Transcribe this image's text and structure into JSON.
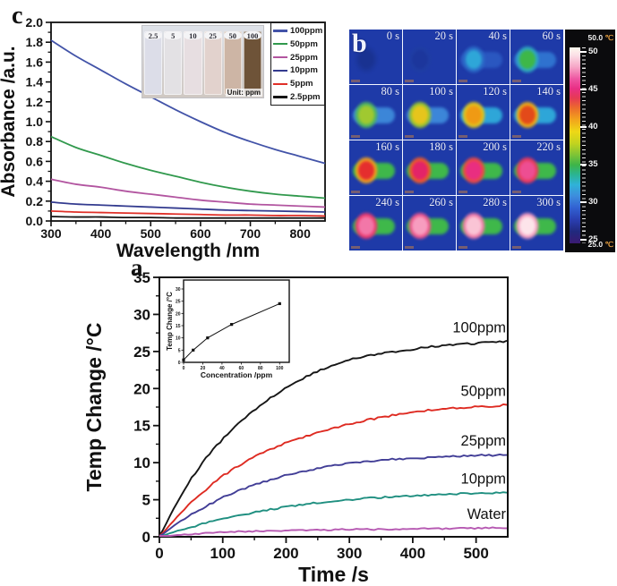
{
  "panel_labels": {
    "a": "a",
    "b": "b",
    "c": "c"
  },
  "chart_data": [
    {
      "id": "c",
      "type": "line",
      "xlabel": "Wavelength /nm",
      "ylabel": "Absorbance /a.u.",
      "xlim": [
        300,
        850
      ],
      "ylim": [
        0.0,
        2.0
      ],
      "xticks": [
        300,
        400,
        500,
        600,
        700,
        800
      ],
      "xminor_step": 50,
      "yticks": [
        0.0,
        0.2,
        0.4,
        0.6,
        0.8,
        1.0,
        1.2,
        1.4,
        1.6,
        1.8,
        2.0
      ],
      "yminor_step": 0.1,
      "grid": false,
      "wavelengths": [
        300,
        350,
        400,
        450,
        500,
        550,
        600,
        650,
        700,
        750,
        800,
        850
      ],
      "series": [
        {
          "name": "100ppm",
          "color": "#4253a8",
          "values": [
            1.82,
            1.66,
            1.52,
            1.38,
            1.25,
            1.12,
            1.0,
            0.89,
            0.8,
            0.72,
            0.65,
            0.58
          ]
        },
        {
          "name": "50ppm",
          "color": "#31994d",
          "values": [
            0.85,
            0.74,
            0.66,
            0.58,
            0.51,
            0.45,
            0.39,
            0.34,
            0.3,
            0.27,
            0.25,
            0.23
          ]
        },
        {
          "name": "25ppm",
          "color": "#b255a0",
          "values": [
            0.42,
            0.37,
            0.34,
            0.3,
            0.27,
            0.24,
            0.21,
            0.19,
            0.17,
            0.16,
            0.15,
            0.14
          ]
        },
        {
          "name": "10ppm",
          "color": "#333b8f",
          "values": [
            0.19,
            0.17,
            0.16,
            0.15,
            0.14,
            0.13,
            0.12,
            0.11,
            0.105,
            0.1,
            0.095,
            0.09
          ]
        },
        {
          "name": "5ppm",
          "color": "#e03028",
          "values": [
            0.1,
            0.09,
            0.085,
            0.08,
            0.075,
            0.07,
            0.065,
            0.06,
            0.06,
            0.055,
            0.055,
            0.05
          ]
        },
        {
          "name": "2.5ppm",
          "color": "#141414",
          "values": [
            0.045,
            0.04,
            0.04,
            0.035,
            0.035,
            0.03,
            0.03,
            0.03,
            0.03,
            0.03,
            0.03,
            0.03
          ]
        }
      ],
      "legend": {
        "position": "top-right",
        "entries": [
          "100ppm",
          "50ppm",
          "25ppm",
          "10ppm",
          "5ppm",
          "2.5ppm"
        ]
      },
      "inset_photo": {
        "labels": [
          "2.5",
          "5",
          "10",
          "25",
          "50",
          "100"
        ],
        "unit_label": "Unit: ppm",
        "cuvette_colors": [
          "#dcdde8",
          "#e3e1e4",
          "#e7dee1",
          "#e2d2cd",
          "#cdb5a5",
          "#6e5338"
        ]
      }
    },
    {
      "id": "b",
      "type": "heatmap",
      "background": "#1e3aa8",
      "tiles": [
        {
          "t": "0 s",
          "blob": "#162d80",
          "ring": "#1a3494",
          "cap": null,
          "op": 0.55
        },
        {
          "t": "20 s",
          "blob": "#1b3391",
          "ring": "#20409f",
          "cap": null,
          "op": 0.5
        },
        {
          "t": "40 s",
          "blob": "#2ea6d8",
          "ring": "#2b6cc8",
          "cap": "#2a57c0",
          "op": 1
        },
        {
          "t": "60 s",
          "blob": "#3eb748",
          "ring": "#2fa8c0",
          "cap": "#2f72cf",
          "op": 1
        },
        {
          "t": "80 s",
          "blob": "#a0c930",
          "ring": "#52b75e",
          "cap": "#3c86d8",
          "op": 1
        },
        {
          "t": "100 s",
          "blob": "#e6c51c",
          "ring": "#9cc42e",
          "cap": "#3c86d8",
          "op": 1
        },
        {
          "t": "120 s",
          "blob": "#ef9a14",
          "ring": "#e0c41c",
          "cap": "#2ea6d8",
          "op": 1
        },
        {
          "t": "140 s",
          "blob": "#e34a1a",
          "ring": "#efae16",
          "cap": "#2ea6d8",
          "op": 1
        },
        {
          "t": "160 s",
          "blob": "#e52e2e",
          "ring": "#efa01e",
          "cap": "#3fb84a",
          "op": 1
        },
        {
          "t": "180 s",
          "blob": "#e32468",
          "ring": "#ee5a28",
          "cap": "#3fb84a",
          "op": 1
        },
        {
          "t": "200 s",
          "blob": "#e92e80",
          "ring": "#ec4a42",
          "cap": "#3fb84a",
          "op": 1
        },
        {
          "t": "220 s",
          "blob": "#ed4e92",
          "ring": "#e93a5c",
          "cap": "#3fb84a",
          "op": 1
        },
        {
          "t": "240 s",
          "blob": "#f277a8",
          "ring": "#ec3a70",
          "cap": "#3fb84a",
          "op": 1
        },
        {
          "t": "260 s",
          "blob": "#f79dbf",
          "ring": "#ef568e",
          "cap": "#3fb84a",
          "op": 1
        },
        {
          "t": "280 s",
          "blob": "#fac4d5",
          "ring": "#f27ca8",
          "cap": "#3fb84a",
          "op": 1
        },
        {
          "t": "300 s",
          "blob": "#fde4ea",
          "ring": "#f59fc2",
          "cap": "#3fb84a",
          "op": 1
        }
      ],
      "colorbar": {
        "max": {
          "value": "50.0",
          "unit": "℃"
        },
        "min": {
          "value": "25.0",
          "unit": "℃"
        },
        "ticks": [
          50,
          45,
          40,
          35,
          30,
          25
        ],
        "range": [
          25,
          50
        ],
        "gradient": [
          [
            0,
            "#fdf9ef"
          ],
          [
            4,
            "#fbdfe6"
          ],
          [
            10,
            "#f6a6c6"
          ],
          [
            16,
            "#ee56a2"
          ],
          [
            21,
            "#e82f85"
          ],
          [
            26,
            "#e63b52"
          ],
          [
            31,
            "#ec6c2c"
          ],
          [
            37,
            "#f2a51c"
          ],
          [
            43,
            "#eed816"
          ],
          [
            49,
            "#c2d31f"
          ],
          [
            55,
            "#7cc337"
          ],
          [
            60,
            "#3db449"
          ],
          [
            65,
            "#2ab493"
          ],
          [
            70,
            "#2fb2d8"
          ],
          [
            76,
            "#3d8cdd"
          ],
          [
            82,
            "#3160d1"
          ],
          [
            88,
            "#2a3eb0"
          ],
          [
            94,
            "#21297e"
          ],
          [
            100,
            "#3b1a72"
          ]
        ]
      }
    },
    {
      "id": "a",
      "type": "line",
      "xlabel": "Time /s",
      "ylabel": "Temp Change /°C",
      "xlim": [
        0,
        550
      ],
      "ylim": [
        0,
        35
      ],
      "xticks": [
        0,
        100,
        200,
        300,
        400,
        500
      ],
      "xminor_step": 50,
      "yticks": [
        0,
        5,
        10,
        15,
        20,
        25,
        30,
        35
      ],
      "yminor_step": 2.5,
      "grid": false,
      "t": [
        0,
        25,
        50,
        75,
        100,
        125,
        150,
        175,
        200,
        225,
        250,
        275,
        300,
        325,
        350,
        375,
        400,
        425,
        450,
        475,
        500,
        525,
        550
      ],
      "series": [
        {
          "name": "100ppm",
          "color": "#161616",
          "noise": 0.13,
          "values": [
            0,
            4.2,
            7.8,
            10.8,
            13.2,
            15.3,
            17.1,
            18.7,
            20.1,
            21.3,
            22.3,
            23.2,
            23.9,
            24.3,
            24.7,
            25.0,
            25.3,
            25.6,
            25.8,
            26.0,
            26.1,
            26.3,
            26.4
          ]
        },
        {
          "name": "50ppm",
          "color": "#de2b22",
          "noise": 0.13,
          "values": [
            0,
            2.4,
            4.6,
            6.5,
            8.2,
            9.6,
            10.8,
            11.8,
            12.7,
            13.4,
            14.1,
            14.7,
            15.2,
            15.7,
            16.1,
            16.5,
            16.8,
            17.1,
            17.3,
            17.4,
            17.5,
            17.6,
            17.8
          ]
        },
        {
          "name": "25ppm",
          "color": "#413d96",
          "noise": 0.12,
          "values": [
            0,
            1.6,
            3.0,
            4.2,
            5.3,
            6.2,
            7.0,
            7.7,
            8.3,
            8.8,
            9.2,
            9.6,
            9.9,
            10.1,
            10.3,
            10.5,
            10.6,
            10.7,
            10.8,
            10.9,
            11.0,
            11.0,
            11.1
          ]
        },
        {
          "name": "10ppm",
          "color": "#1f8f80",
          "noise": 0.11,
          "values": [
            0,
            0.7,
            1.3,
            1.9,
            2.4,
            2.9,
            3.3,
            3.7,
            4.0,
            4.3,
            4.6,
            4.8,
            5.0,
            5.2,
            5.3,
            5.4,
            5.5,
            5.6,
            5.7,
            5.8,
            5.9,
            5.9,
            6.0
          ]
        },
        {
          "name": "Water",
          "color": "#b659b2",
          "noise": 0.09,
          "values": [
            0,
            0.2,
            0.35,
            0.5,
            0.6,
            0.7,
            0.75,
            0.8,
            0.85,
            0.9,
            0.9,
            0.95,
            1.0,
            1.0,
            1.0,
            1.05,
            1.1,
            1.1,
            1.1,
            1.15,
            1.15,
            1.2,
            1.2
          ]
        }
      ],
      "inset": {
        "type": "scatter",
        "xlabel": "Concentration /ppm",
        "ylabel": "Temp Change /°C",
        "xlim": [
          0,
          110
        ],
        "ylim": [
          0,
          30
        ],
        "xticks": [
          0,
          20,
          40,
          60,
          80,
          100
        ],
        "yticks": [
          0,
          5,
          10,
          15,
          20,
          25,
          30
        ],
        "x": [
          0,
          10,
          25,
          50,
          100
        ],
        "y": [
          1,
          5,
          10,
          15.5,
          24
        ]
      }
    }
  ]
}
